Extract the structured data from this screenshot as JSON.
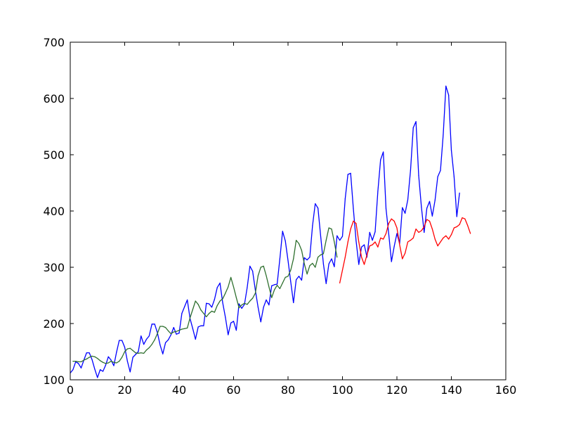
{
  "chart_data": {
    "type": "line",
    "title": "",
    "xlabel": "",
    "ylabel": "",
    "xlim": [
      0,
      160
    ],
    "ylim": [
      100,
      700
    ],
    "x_ticks": [
      0,
      20,
      40,
      60,
      80,
      100,
      120,
      140,
      160
    ],
    "y_ticks": [
      100,
      200,
      300,
      400,
      500,
      600,
      700
    ],
    "x_tick_labels": [
      "0",
      "20",
      "40",
      "60",
      "80",
      "100",
      "120",
      "140",
      "160"
    ],
    "y_tick_labels": [
      "100",
      "200",
      "300",
      "400",
      "500",
      "600",
      "700"
    ],
    "grid": false,
    "legend": "none",
    "series": [
      {
        "color": "#0000ff",
        "x_start": 0,
        "values": [
          112,
          118,
          132,
          129,
          121,
          135,
          148,
          148,
          136,
          119,
          104,
          118,
          115,
          126,
          141,
          135,
          125,
          149,
          170,
          170,
          158,
          133,
          114,
          140,
          145,
          150,
          178,
          163,
          172,
          178,
          199,
          199,
          184,
          162,
          146,
          166,
          171,
          180,
          193,
          181,
          183,
          218,
          230,
          242,
          209,
          191,
          172,
          194,
          196,
          196,
          236,
          235,
          229,
          243,
          264,
          272,
          237,
          211,
          180,
          201,
          204,
          188,
          235,
          227,
          234,
          264,
          302,
          293,
          259,
          229,
          203,
          229,
          242,
          233,
          267,
          269,
          270,
          315,
          364,
          347,
          312,
          274,
          237,
          278,
          284,
          277,
          317,
          313,
          318,
          374,
          413,
          405,
          355,
          306,
          271,
          306,
          315,
          301,
          356,
          348,
          355,
          422,
          465,
          467,
          404,
          347,
          305,
          336,
          340,
          318,
          362,
          348,
          363,
          435,
          491,
          505,
          404,
          359,
          310,
          337,
          360,
          342,
          406,
          396,
          420,
          472,
          548,
          559,
          463,
          407,
          362,
          405,
          417,
          391,
          419,
          461,
          472,
          535,
          622,
          606,
          508,
          461,
          390,
          432
        ]
      },
      {
        "color": "#2e6f2e",
        "x_start": 1,
        "values": [
          133,
          133,
          132,
          132,
          135,
          137,
          140,
          142,
          141,
          138,
          134,
          131,
          129,
          130,
          133,
          131,
          130,
          133,
          140,
          150,
          155,
          156,
          152,
          148,
          147,
          148,
          147,
          153,
          157,
          163,
          171,
          182,
          195,
          195,
          193,
          187,
          182,
          185,
          186,
          188,
          190,
          191,
          192,
          210,
          225,
          240,
          234,
          224,
          218,
          212,
          218,
          222,
          220,
          232,
          240,
          244,
          254,
          265,
          282,
          265,
          246,
          228,
          233,
          236,
          234,
          240,
          245,
          254,
          285,
          300,
          302,
          285,
          265,
          246,
          260,
          268,
          262,
          272,
          282,
          284,
          295,
          315,
          348,
          342,
          330,
          306,
          288,
          303,
          307,
          300,
          318,
          322,
          324,
          348,
          370,
          368,
          345,
          318
        ]
      },
      {
        "color": "#ff0000",
        "x_start": 99,
        "values": [
          272,
          295,
          318,
          345,
          368,
          382,
          378,
          345,
          318,
          305,
          322,
          338,
          340,
          345,
          336,
          352,
          350,
          360,
          378,
          386,
          382,
          370,
          340,
          315,
          325,
          345,
          348,
          352,
          368,
          362,
          365,
          372,
          385,
          382,
          368,
          350,
          338,
          345,
          352,
          356,
          350,
          358,
          370,
          372,
          376,
          388,
          386,
          374,
          360
        ]
      }
    ]
  }
}
